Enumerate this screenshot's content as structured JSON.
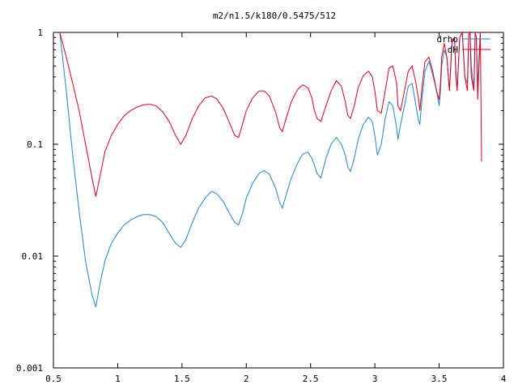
{
  "chart_data": {
    "type": "line",
    "title": "m2/n1.5/k180/0.5475/512",
    "xlabel": "",
    "ylabel": "",
    "xlim": [
      0.5,
      4
    ],
    "ylim": [
      0.001,
      1
    ],
    "yscale": "log",
    "grid": false,
    "legend_position": "top-right",
    "x_ticks": [
      0.5,
      1,
      1.5,
      2,
      2.5,
      3,
      3.5,
      4
    ],
    "x_tick_labels": [
      "0.5",
      "1",
      "1.5",
      "2",
      "2.5",
      "3",
      "3.5",
      "4"
    ],
    "y_ticks": [
      0.001,
      0.01,
      0.1,
      1
    ],
    "y_tick_labels": [
      "0.001",
      "0.01",
      "0.1",
      "1"
    ],
    "series": [
      {
        "name": "drho",
        "color": "#1f84d6",
        "x": [
          0.55,
          0.6,
          0.65,
          0.7,
          0.75,
          0.8,
          0.83,
          0.86,
          0.9,
          0.95,
          1.0,
          1.05,
          1.1,
          1.15,
          1.2,
          1.25,
          1.3,
          1.35,
          1.4,
          1.45,
          1.49,
          1.53,
          1.58,
          1.63,
          1.68,
          1.73,
          1.77,
          1.82,
          1.87,
          1.91,
          1.94,
          1.97,
          2.0,
          2.05,
          2.1,
          2.14,
          2.18,
          2.23,
          2.26,
          2.28,
          2.31,
          2.35,
          2.4,
          2.44,
          2.48,
          2.51,
          2.53,
          2.55,
          2.58,
          2.62,
          2.66,
          2.7,
          2.74,
          2.77,
          2.79,
          2.81,
          2.84,
          2.87,
          2.91,
          2.95,
          2.98,
          3.0,
          3.02,
          3.05,
          3.08,
          3.11,
          3.14,
          3.17,
          3.18,
          3.2,
          3.23,
          3.26,
          3.29,
          3.32,
          3.34,
          3.35,
          3.37,
          3.39,
          3.42,
          3.45,
          3.48,
          3.5,
          3.51,
          3.52,
          3.54,
          3.56,
          3.58,
          3.6,
          3.62,
          3.63,
          3.64,
          3.66,
          3.68,
          3.7,
          3.72,
          3.73,
          3.74,
          3.75,
          3.77,
          3.78,
          3.79,
          3.8,
          3.81,
          3.82
        ],
        "y": [
          1.0,
          0.3,
          0.08,
          0.025,
          0.009,
          0.0045,
          0.0035,
          0.0055,
          0.009,
          0.013,
          0.016,
          0.019,
          0.021,
          0.0225,
          0.0235,
          0.0235,
          0.0225,
          0.02,
          0.016,
          0.013,
          0.012,
          0.014,
          0.02,
          0.027,
          0.033,
          0.038,
          0.036,
          0.031,
          0.024,
          0.02,
          0.019,
          0.024,
          0.033,
          0.045,
          0.055,
          0.058,
          0.054,
          0.04,
          0.03,
          0.027,
          0.035,
          0.05,
          0.068,
          0.082,
          0.085,
          0.075,
          0.065,
          0.055,
          0.05,
          0.075,
          0.1,
          0.115,
          0.1,
          0.08,
          0.062,
          0.057,
          0.075,
          0.11,
          0.15,
          0.175,
          0.16,
          0.12,
          0.08,
          0.1,
          0.17,
          0.24,
          0.22,
          0.14,
          0.11,
          0.15,
          0.22,
          0.33,
          0.35,
          0.22,
          0.16,
          0.15,
          0.28,
          0.45,
          0.55,
          0.42,
          0.3,
          0.22,
          0.3,
          0.5,
          0.7,
          0.6,
          0.3,
          0.8,
          0.9,
          0.4,
          0.3,
          0.9,
          1.0,
          0.4,
          0.35,
          0.95,
          1.0,
          0.5,
          0.3,
          1.0,
          0.9,
          0.3,
          0.6,
          1.0
        ]
      },
      {
        "name": "dH",
        "color": "#e0001c",
        "x": [
          0.55,
          0.6,
          0.65,
          0.7,
          0.75,
          0.8,
          0.83,
          0.86,
          0.9,
          0.95,
          1.0,
          1.05,
          1.1,
          1.15,
          1.2,
          1.25,
          1.3,
          1.35,
          1.4,
          1.45,
          1.49,
          1.53,
          1.58,
          1.63,
          1.68,
          1.73,
          1.77,
          1.82,
          1.87,
          1.91,
          1.94,
          1.97,
          2.0,
          2.05,
          2.1,
          2.14,
          2.18,
          2.23,
          2.26,
          2.28,
          2.31,
          2.35,
          2.4,
          2.44,
          2.48,
          2.51,
          2.53,
          2.55,
          2.58,
          2.62,
          2.66,
          2.7,
          2.74,
          2.77,
          2.79,
          2.81,
          2.84,
          2.87,
          2.91,
          2.95,
          2.98,
          3.0,
          3.02,
          3.05,
          3.08,
          3.11,
          3.14,
          3.17,
          3.18,
          3.2,
          3.23,
          3.26,
          3.29,
          3.32,
          3.34,
          3.35,
          3.37,
          3.39,
          3.42,
          3.45,
          3.48,
          3.5,
          3.51,
          3.52,
          3.54,
          3.56,
          3.58,
          3.6,
          3.62,
          3.63,
          3.64,
          3.66,
          3.68,
          3.7,
          3.72,
          3.73,
          3.74,
          3.75,
          3.77,
          3.78,
          3.79,
          3.8,
          3.81,
          3.82,
          3.83
        ],
        "y": [
          1.0,
          0.6,
          0.35,
          0.2,
          0.1,
          0.05,
          0.034,
          0.05,
          0.085,
          0.12,
          0.15,
          0.18,
          0.2,
          0.215,
          0.225,
          0.228,
          0.22,
          0.195,
          0.16,
          0.12,
          0.1,
          0.12,
          0.17,
          0.22,
          0.26,
          0.27,
          0.255,
          0.21,
          0.155,
          0.12,
          0.115,
          0.15,
          0.2,
          0.26,
          0.3,
          0.3,
          0.27,
          0.19,
          0.14,
          0.13,
          0.17,
          0.24,
          0.31,
          0.34,
          0.32,
          0.26,
          0.2,
          0.17,
          0.16,
          0.22,
          0.3,
          0.37,
          0.33,
          0.24,
          0.18,
          0.17,
          0.22,
          0.32,
          0.41,
          0.45,
          0.4,
          0.3,
          0.2,
          0.19,
          0.3,
          0.48,
          0.5,
          0.35,
          0.22,
          0.2,
          0.3,
          0.45,
          0.5,
          0.35,
          0.25,
          0.2,
          0.35,
          0.55,
          0.6,
          0.45,
          0.3,
          0.25,
          0.35,
          0.6,
          0.8,
          0.6,
          0.3,
          0.85,
          0.9,
          0.45,
          0.3,
          0.9,
          1.0,
          0.4,
          0.3,
          0.95,
          1.0,
          0.4,
          0.3,
          1.0,
          0.9,
          0.25,
          0.5,
          1.0,
          0.07
        ]
      }
    ]
  }
}
